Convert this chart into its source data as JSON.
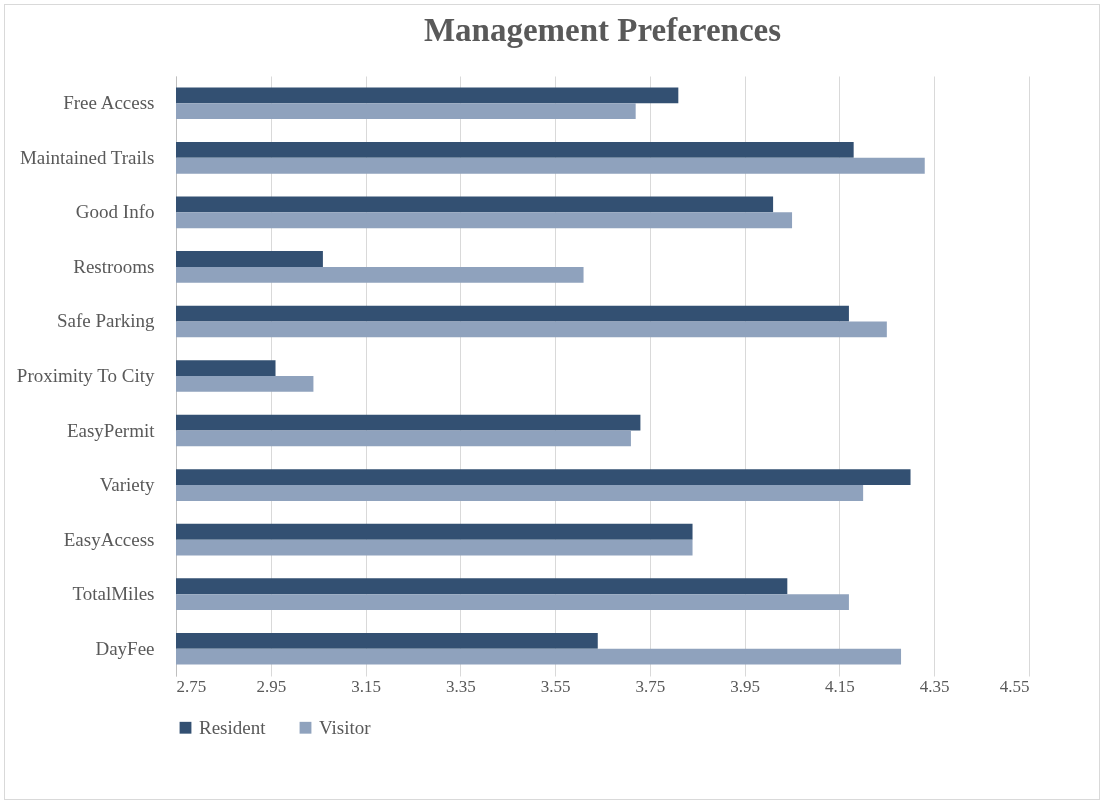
{
  "chart_data": {
    "type": "bar",
    "orientation": "horizontal",
    "title": "Management Preferences",
    "categories": [
      "Free Access",
      "Maintained Trails",
      "Good Info",
      "Restrooms",
      "Safe Parking",
      "Proximity To City",
      "EasyPermit",
      "Variety",
      "EasyAccess",
      "TotalMiles",
      "DayFee"
    ],
    "series": [
      {
        "name": "Resident",
        "color": "#335072",
        "values": [
          3.81,
          4.18,
          4.01,
          3.06,
          4.17,
          2.96,
          3.73,
          4.3,
          3.84,
          4.04,
          3.64
        ]
      },
      {
        "name": "Visitor",
        "color": "#8fa2bd",
        "values": [
          3.72,
          4.33,
          4.05,
          3.61,
          4.25,
          3.04,
          3.71,
          4.2,
          3.84,
          4.17,
          4.28
        ]
      }
    ],
    "xlim": [
      2.75,
      4.55
    ],
    "xticks": [
      2.75,
      2.95,
      3.15,
      3.35,
      3.55,
      3.75,
      3.95,
      4.15,
      4.35,
      4.55
    ],
    "grid": "x",
    "legend": "bottom"
  }
}
